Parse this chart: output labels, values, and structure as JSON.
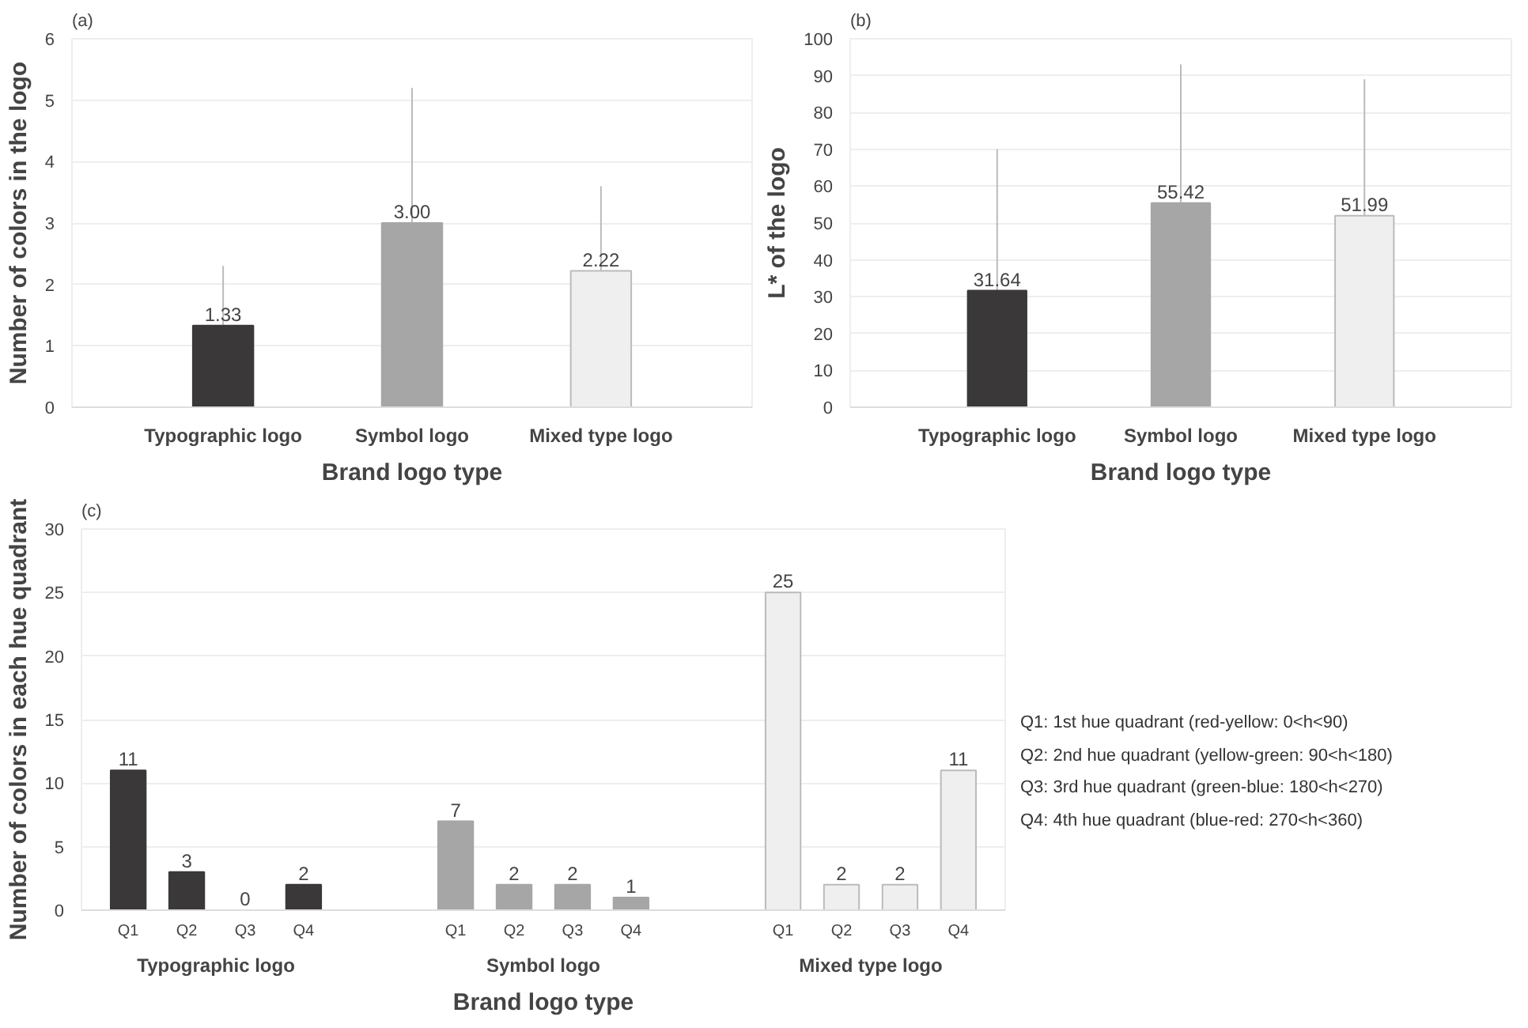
{
  "chart_data": [
    {
      "type": "bar",
      "title": "(a)",
      "xlabel": "Brand logo type",
      "ylabel": "Number of colors in the logo",
      "categories": [
        "Typographic logo",
        "Symbol logo",
        "Mixed type logo"
      ],
      "values": [
        1.33,
        3.0,
        2.22
      ],
      "value_labels": [
        "1.33",
        "3.00",
        "2.22"
      ],
      "colors": [
        "#3a3838",
        "#a6a6a6",
        "#efefef"
      ],
      "errors": [
        [
          1.33,
          2.3
        ],
        [
          3.0,
          5.2
        ],
        [
          2.22,
          3.6
        ]
      ],
      "ylim": [
        0,
        6
      ],
      "yticks": [
        0,
        1,
        2,
        3,
        4,
        5,
        6
      ],
      "grid": "y"
    },
    {
      "type": "bar",
      "title": "(b)",
      "xlabel": "Brand logo type",
      "ylabel": "L* of the logo",
      "categories": [
        "Typographic logo",
        "Symbol logo",
        "Mixed type logo"
      ],
      "values": [
        31.64,
        55.42,
        51.99
      ],
      "value_labels": [
        "31.64",
        "55.42",
        "51.99"
      ],
      "colors": [
        "#3a3838",
        "#a6a6a6",
        "#efefef"
      ],
      "errors": [
        [
          31.64,
          70
        ],
        [
          55.42,
          93
        ],
        [
          51.99,
          89
        ]
      ],
      "ylim": [
        0,
        100
      ],
      "yticks": [
        0,
        10,
        20,
        30,
        40,
        50,
        60,
        70,
        80,
        90,
        100
      ],
      "grid": "y"
    },
    {
      "type": "bar",
      "title": "(c)",
      "xlabel": "Brand logo type",
      "ylabel": "Number of colors in each hue quadrant",
      "categories": [
        "Q1",
        "Q2",
        "Q3",
        "Q4",
        "Q1",
        "Q2",
        "Q3",
        "Q4",
        "Q1",
        "Q2",
        "Q3",
        "Q4"
      ],
      "series": [
        {
          "name": "Typographic logo",
          "color": "#3a3838",
          "values": [
            11,
            3,
            0,
            2,
            null,
            null,
            null,
            null,
            null,
            null,
            null,
            null
          ]
        },
        {
          "name": "Symbol logo",
          "color": "#a6a6a6",
          "values": [
            null,
            null,
            null,
            null,
            7,
            2,
            2,
            1,
            null,
            null,
            null,
            null
          ]
        },
        {
          "name": "Mixed type logo",
          "color": "#efefef",
          "values": [
            null,
            null,
            null,
            null,
            null,
            null,
            null,
            null,
            25,
            2,
            2,
            11
          ]
        }
      ],
      "data_labels": true,
      "ylim": [
        0,
        30
      ],
      "yticks": [
        0,
        5,
        10,
        15,
        20,
        25,
        30
      ],
      "grid": "y",
      "annotations": [
        "Q1: 1st hue quadrant (red-yellow: 0<h<90)",
        "Q2: 2nd hue quadrant (yellow-green: 90<h<180)",
        "Q3: 3rd hue quadrant (green-blue: 180<h<270)",
        "Q4: 4th hue quadrant (blue-red: 270<h<360)"
      ]
    }
  ]
}
